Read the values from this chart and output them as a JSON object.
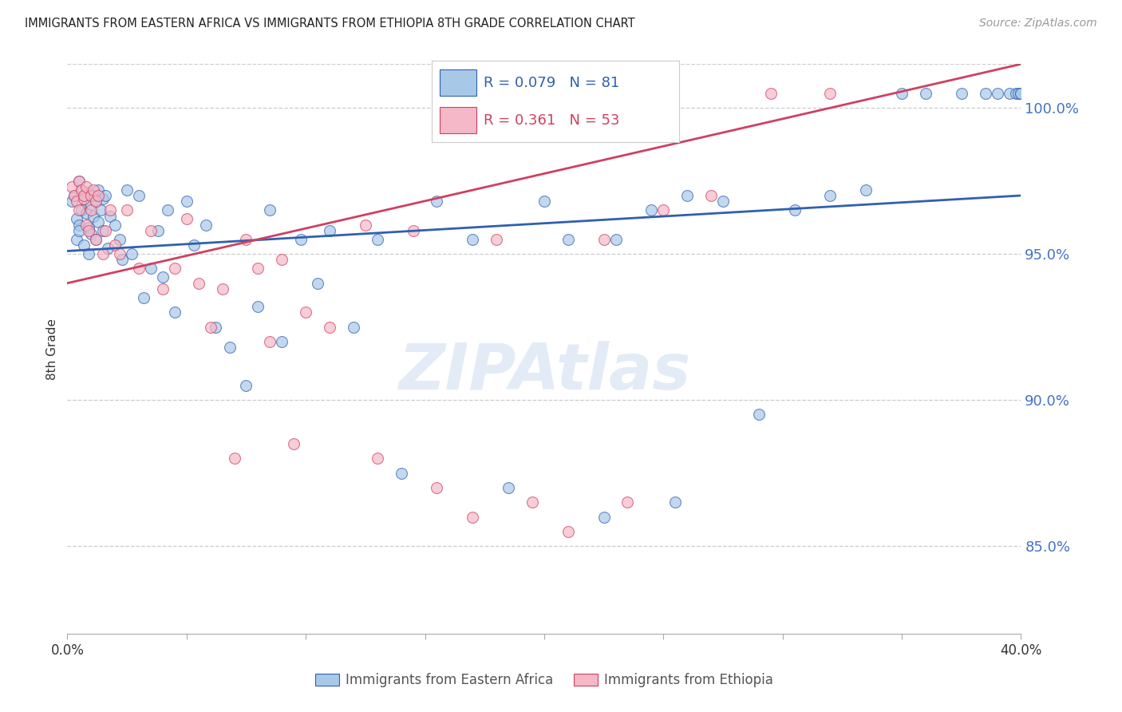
{
  "title": "IMMIGRANTS FROM EASTERN AFRICA VS IMMIGRANTS FROM ETHIOPIA 8TH GRADE CORRELATION CHART",
  "source": "Source: ZipAtlas.com",
  "ylabel": "8th Grade",
  "legend_label1": "Immigrants from Eastern Africa",
  "legend_label2": "Immigrants from Ethiopia",
  "R1": 0.079,
  "N1": 81,
  "R2": 0.361,
  "N2": 53,
  "color1": "#a8c8e8",
  "color2": "#f4b8c8",
  "trendline1_color": "#3060b0",
  "trendline2_color": "#d04060",
  "xmin": 0.0,
  "xmax": 40.0,
  "ymin": 82.0,
  "ymax": 101.5,
  "yticks": [
    85.0,
    90.0,
    95.0,
    100.0
  ],
  "xticks_show": [
    0.0,
    40.0
  ],
  "xticks_all": [
    0.0,
    5.0,
    10.0,
    15.0,
    20.0,
    25.0,
    30.0,
    35.0,
    40.0
  ],
  "watermark": "ZIPAtlas",
  "trendline1_x0": 0.0,
  "trendline1_y0": 95.1,
  "trendline1_x1": 40.0,
  "trendline1_y1": 97.0,
  "trendline2_x0": 0.0,
  "trendline2_y0": 94.0,
  "trendline2_x1": 40.0,
  "trendline2_y1": 101.5,
  "scatter1_x": [
    0.2,
    0.3,
    0.4,
    0.4,
    0.5,
    0.5,
    0.5,
    0.6,
    0.6,
    0.7,
    0.7,
    0.8,
    0.8,
    0.9,
    0.9,
    1.0,
    1.0,
    1.1,
    1.1,
    1.2,
    1.2,
    1.3,
    1.3,
    1.4,
    1.5,
    1.5,
    1.6,
    1.7,
    1.8,
    2.0,
    2.2,
    2.3,
    2.5,
    2.7,
    3.0,
    3.2,
    3.5,
    3.8,
    4.0,
    4.2,
    4.5,
    5.0,
    5.3,
    5.8,
    6.2,
    6.8,
    7.5,
    8.0,
    8.5,
    9.0,
    9.8,
    10.5,
    11.0,
    12.0,
    13.0,
    14.0,
    15.5,
    17.0,
    18.5,
    20.0,
    21.0,
    22.5,
    23.0,
    24.5,
    25.5,
    26.0,
    27.5,
    29.0,
    30.5,
    32.0,
    33.5,
    35.0,
    36.0,
    37.5,
    38.5,
    39.0,
    39.5,
    39.8,
    39.9,
    40.0,
    40.0
  ],
  "scatter1_y": [
    96.8,
    97.0,
    96.2,
    95.5,
    97.5,
    96.0,
    95.8,
    97.2,
    96.5,
    96.9,
    95.3,
    97.1,
    96.4,
    95.9,
    95.0,
    96.7,
    95.7,
    97.0,
    96.3,
    96.8,
    95.5,
    97.2,
    96.1,
    96.5,
    95.8,
    96.9,
    97.0,
    95.2,
    96.3,
    96.0,
    95.5,
    94.8,
    97.2,
    95.0,
    97.0,
    93.5,
    94.5,
    95.8,
    94.2,
    96.5,
    93.0,
    96.8,
    95.3,
    96.0,
    92.5,
    91.8,
    90.5,
    93.2,
    96.5,
    92.0,
    95.5,
    94.0,
    95.8,
    92.5,
    95.5,
    87.5,
    96.8,
    95.5,
    87.0,
    96.8,
    95.5,
    86.0,
    95.5,
    96.5,
    86.5,
    97.0,
    96.8,
    89.5,
    96.5,
    97.0,
    97.2,
    100.5,
    100.5,
    100.5,
    100.5,
    100.5,
    100.5,
    100.5,
    100.5,
    100.5,
    100.5
  ],
  "scatter2_x": [
    0.2,
    0.3,
    0.4,
    0.5,
    0.5,
    0.6,
    0.7,
    0.7,
    0.8,
    0.8,
    0.9,
    1.0,
    1.0,
    1.1,
    1.2,
    1.2,
    1.3,
    1.5,
    1.6,
    1.8,
    2.0,
    2.2,
    2.5,
    3.0,
    3.5,
    4.0,
    4.5,
    5.0,
    5.5,
    6.0,
    6.5,
    7.0,
    7.5,
    8.0,
    8.5,
    9.0,
    9.5,
    10.0,
    11.0,
    12.5,
    13.0,
    14.5,
    15.5,
    17.0,
    18.0,
    19.5,
    21.0,
    22.5,
    23.5,
    25.0,
    27.0,
    29.5,
    32.0
  ],
  "scatter2_y": [
    97.3,
    97.0,
    96.8,
    97.5,
    96.5,
    97.2,
    96.9,
    97.0,
    97.3,
    96.0,
    95.8,
    97.0,
    96.5,
    97.2,
    95.5,
    96.8,
    97.0,
    95.0,
    95.8,
    96.5,
    95.3,
    95.0,
    96.5,
    94.5,
    95.8,
    93.8,
    94.5,
    96.2,
    94.0,
    92.5,
    93.8,
    88.0,
    95.5,
    94.5,
    92.0,
    94.8,
    88.5,
    93.0,
    92.5,
    96.0,
    88.0,
    95.8,
    87.0,
    86.0,
    95.5,
    86.5,
    85.5,
    95.5,
    86.5,
    96.5,
    97.0,
    100.5,
    100.5
  ]
}
